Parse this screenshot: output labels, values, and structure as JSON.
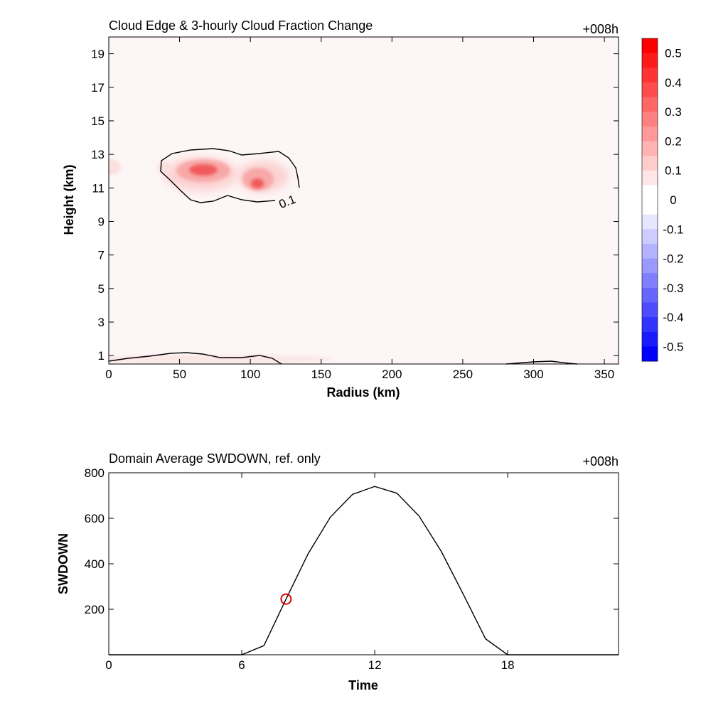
{
  "chart_data": [
    {
      "type": "heatmap",
      "title": "Cloud Edge & 3-hourly Cloud Fraction Change",
      "time_label": "+008h",
      "xlabel": "Radius (km)",
      "ylabel": "Height (km)",
      "xlim": [
        0,
        360
      ],
      "ylim": [
        0.5,
        20
      ],
      "xticks": [
        "0",
        "50",
        "100",
        "150",
        "200",
        "250",
        "300",
        "350"
      ],
      "yticks": [
        "1",
        "3",
        "5",
        "7",
        "9",
        "11",
        "13",
        "15",
        "17",
        "19"
      ],
      "contour_label": "0.1",
      "colorbar": {
        "labels": [
          "0.5",
          "0.4",
          "0.3",
          "0.2",
          "0.1",
          "0",
          "-0.1",
          "-0.2",
          "-0.3",
          "-0.4",
          "-0.5"
        ],
        "range": [
          -0.55,
          0.55
        ],
        "top_color": "#ff0000",
        "bottom_color": "#0000ff"
      },
      "features": [
        {
          "kind": "positive_blob",
          "center_radius_km": 67,
          "center_height_km": 12.0,
          "peak_value": 0.45
        },
        {
          "kind": "positive_blob",
          "center_radius_km": 105,
          "center_height_km": 11.2,
          "peak_value": 0.4
        },
        {
          "kind": "positive_blob",
          "center_radius_km": 2,
          "center_height_km": 12.2,
          "peak_value": 0.1
        },
        {
          "kind": "positive_blob",
          "center_radius_km": 37,
          "center_height_km": 12.2,
          "peak_value": 0.1
        }
      ]
    },
    {
      "type": "line",
      "title": "Domain Average SWDOWN, ref. only",
      "time_label": "+008h",
      "xlabel": "Time",
      "ylabel": "SWDOWN",
      "xlim": [
        0,
        23
      ],
      "ylim": [
        0,
        800
      ],
      "xticks": [
        "0",
        "6",
        "12",
        "18"
      ],
      "yticks": [
        "200",
        "400",
        "600",
        "800"
      ],
      "series": [
        {
          "x": [
            0,
            1,
            2,
            3,
            4,
            5,
            6,
            7,
            8,
            9,
            10,
            11,
            12,
            13,
            14,
            15,
            16,
            17,
            18,
            19,
            20,
            21,
            22,
            23
          ],
          "values": [
            0,
            0,
            0,
            0,
            0,
            0,
            0,
            40,
            245,
            445,
            605,
            705,
            740,
            710,
            610,
            455,
            265,
            70,
            0,
            0,
            0,
            0,
            0,
            0
          ]
        }
      ],
      "marker": {
        "x": 8,
        "y": 245,
        "color": "#e00000"
      }
    }
  ]
}
